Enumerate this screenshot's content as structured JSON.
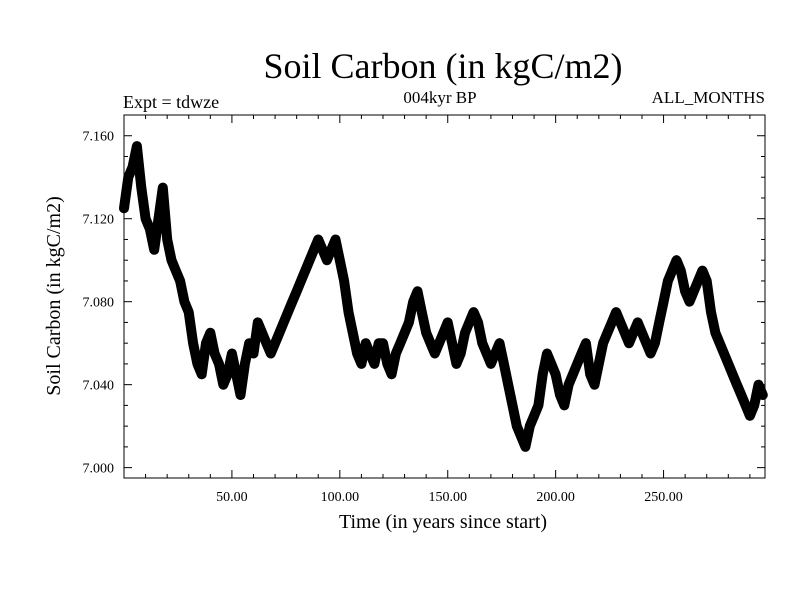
{
  "chart_data": {
    "type": "line",
    "title": "Soil Carbon (in kgC/m2)",
    "subtitle": "004kyr BP",
    "left_annotation": "Expt = tdwze",
    "right_annotation": "ALL_MONTHS",
    "xlabel": "Time (in years since start)",
    "ylabel": "Soil Carbon (in kgC/m2)",
    "xlim": [
      0,
      297
    ],
    "ylim": [
      6.995,
      7.17
    ],
    "xticks": [
      50,
      100,
      150,
      200,
      250
    ],
    "xtick_labels": [
      "50.00",
      "100.00",
      "150.00",
      "200.00",
      "250.00"
    ],
    "yticks": [
      7.0,
      7.04,
      7.08,
      7.12,
      7.16
    ],
    "ytick_labels": [
      "7.000",
      "7.040",
      "7.080",
      "7.120",
      "7.160"
    ],
    "grid": false,
    "line_color": "#000000",
    "series": [
      {
        "x": [
          0,
          2,
          4,
          6,
          8,
          10,
          12,
          14,
          16,
          18,
          20,
          22,
          24,
          26,
          28,
          30,
          32,
          34,
          36,
          38,
          40,
          42,
          44,
          46,
          48,
          50,
          52,
          54,
          56,
          58,
          60,
          62,
          64,
          66,
          68,
          70,
          72,
          74,
          76,
          78,
          80,
          82,
          84,
          86,
          88,
          90,
          92,
          94,
          96,
          98,
          100,
          102,
          104,
          106,
          108,
          110,
          112,
          114,
          116,
          118,
          120,
          122,
          124,
          126,
          128,
          130,
          132,
          134,
          136,
          138,
          140,
          142,
          144,
          146,
          148,
          150,
          152,
          154,
          156,
          158,
          160,
          162,
          164,
          166,
          168,
          170,
          172,
          174,
          176,
          178,
          180,
          182,
          184,
          186,
          188,
          190,
          192,
          194,
          196,
          198,
          200,
          202,
          204,
          206,
          208,
          210,
          212,
          214,
          216,
          218,
          220,
          222,
          224,
          226,
          228,
          230,
          232,
          234,
          236,
          238,
          240,
          242,
          244,
          246,
          248,
          250,
          252,
          254,
          256,
          258,
          260,
          262,
          264,
          266,
          268,
          270,
          272,
          274,
          276,
          278,
          280,
          282,
          284,
          286,
          288,
          290,
          292,
          294,
          296
        ],
        "y": [
          7.125,
          7.14,
          7.145,
          7.155,
          7.135,
          7.12,
          7.115,
          7.105,
          7.12,
          7.135,
          7.11,
          7.1,
          7.095,
          7.09,
          7.08,
          7.075,
          7.06,
          7.05,
          7.045,
          7.06,
          7.065,
          7.055,
          7.05,
          7.04,
          7.045,
          7.055,
          7.045,
          7.035,
          7.05,
          7.06,
          7.055,
          7.07,
          7.065,
          7.06,
          7.055,
          7.06,
          7.065,
          7.07,
          7.075,
          7.08,
          7.085,
          7.09,
          7.095,
          7.1,
          7.105,
          7.11,
          7.105,
          7.1,
          7.105,
          7.11,
          7.1,
          7.09,
          7.075,
          7.065,
          7.055,
          7.05,
          7.06,
          7.055,
          7.05,
          7.06,
          7.06,
          7.05,
          7.045,
          7.055,
          7.06,
          7.065,
          7.07,
          7.08,
          7.085,
          7.075,
          7.065,
          7.06,
          7.055,
          7.06,
          7.065,
          7.07,
          7.06,
          7.05,
          7.055,
          7.065,
          7.07,
          7.075,
          7.07,
          7.06,
          7.055,
          7.05,
          7.055,
          7.06,
          7.05,
          7.04,
          7.03,
          7.02,
          7.015,
          7.01,
          7.02,
          7.025,
          7.03,
          7.045,
          7.055,
          7.05,
          7.045,
          7.035,
          7.03,
          7.04,
          7.045,
          7.05,
          7.055,
          7.06,
          7.045,
          7.04,
          7.05,
          7.06,
          7.065,
          7.07,
          7.075,
          7.07,
          7.065,
          7.06,
          7.065,
          7.07,
          7.065,
          7.06,
          7.055,
          7.06,
          7.07,
          7.08,
          7.09,
          7.095,
          7.1,
          7.095,
          7.085,
          7.08,
          7.085,
          7.09,
          7.095,
          7.09,
          7.075,
          7.065,
          7.06,
          7.055,
          7.05,
          7.045,
          7.04,
          7.035,
          7.03,
          7.025,
          7.03,
          7.04,
          7.035
        ]
      }
    ]
  }
}
